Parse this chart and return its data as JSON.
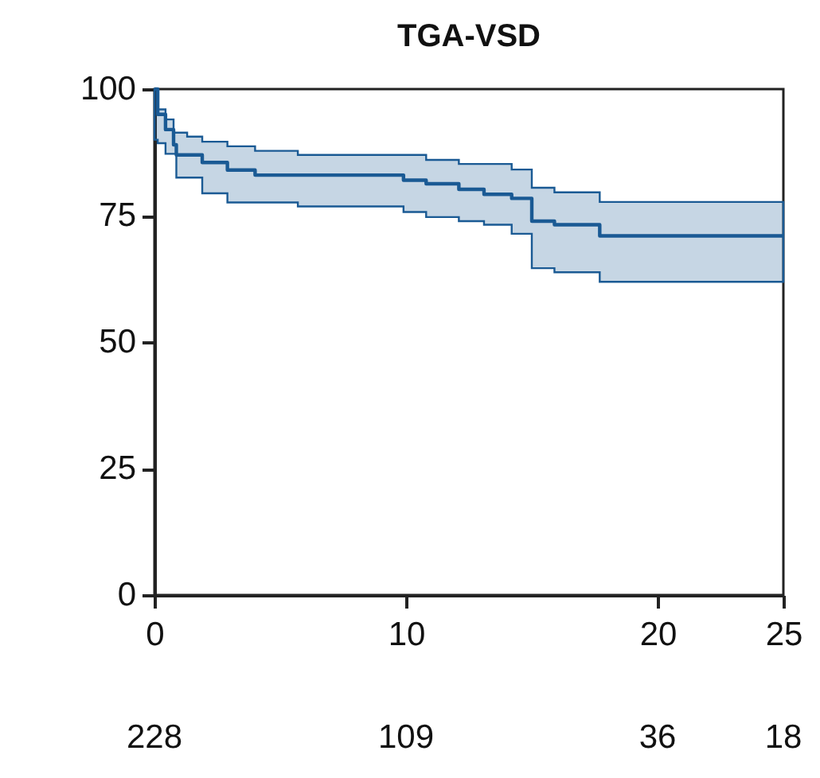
{
  "chart_data": {
    "type": "step",
    "title": "TGA-VSD",
    "x": [
      0,
      0.13,
      0.44,
      0.76,
      0.87,
      1.3,
      1.9,
      2.9,
      4.0,
      5.7,
      9.9,
      10.8,
      12.1,
      13.1,
      14.2,
      15.0,
      15.9,
      17.7,
      25
    ],
    "series": [
      {
        "color": "#1a5a94",
        "values": [
          100,
          95,
          92,
          89,
          87,
          87,
          85.5,
          84,
          83,
          83,
          82,
          81.3,
          80.2,
          79.2,
          78.4,
          73.9,
          73.2,
          71,
          71
        ],
        "upper": [
          100,
          96,
          94,
          91.4,
          91.4,
          90.6,
          89.6,
          88.7,
          87.8,
          87,
          87,
          86,
          85.2,
          85.2,
          84.1,
          80.5,
          79.6,
          77.7,
          77.7
        ],
        "lower": [
          90,
          89.3,
          87.2,
          87.2,
          82.5,
          82.5,
          79.4,
          77.6,
          77.6,
          76.8,
          75.7,
          74.7,
          73.9,
          73.2,
          71.4,
          64.6,
          63.8,
          61.9,
          61.9
        ]
      }
    ],
    "xlim": [
      0,
      25
    ],
    "xticks": [
      0,
      10,
      20,
      25
    ],
    "ylim": [
      0,
      100
    ],
    "yticks": [
      0,
      25,
      50,
      75,
      100
    ],
    "annotations": [
      "228",
      "109",
      "36",
      "18"
    ]
  }
}
